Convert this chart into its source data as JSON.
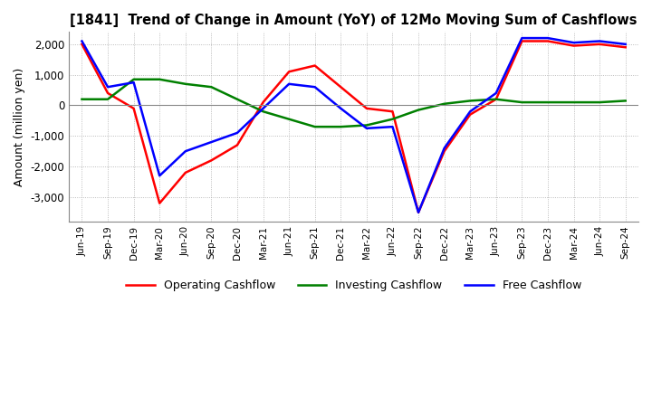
{
  "title": "[1841]  Trend of Change in Amount (YoY) of 12Mo Moving Sum of Cashflows",
  "ylabel": "Amount (million yen)",
  "x_labels": [
    "Jun-19",
    "Sep-19",
    "Dec-19",
    "Mar-20",
    "Jun-20",
    "Sep-20",
    "Dec-20",
    "Mar-21",
    "Jun-21",
    "Sep-21",
    "Dec-21",
    "Mar-22",
    "Jun-22",
    "Sep-22",
    "Dec-22",
    "Mar-23",
    "Jun-23",
    "Sep-23",
    "Dec-23",
    "Mar-24",
    "Jun-24",
    "Sep-24"
  ],
  "operating": [
    2000,
    400,
    -100,
    -3200,
    -2200,
    -1800,
    -1300,
    100,
    1100,
    1300,
    600,
    -100,
    -200,
    -3500,
    -1500,
    -300,
    200,
    2100,
    2100,
    1950,
    2000,
    1900
  ],
  "investing": [
    200,
    200,
    850,
    850,
    700,
    600,
    200,
    -200,
    -450,
    -700,
    -700,
    -650,
    -450,
    -150,
    50,
    150,
    200,
    100,
    100,
    100,
    100,
    150
  ],
  "free": [
    2100,
    600,
    750,
    -2300,
    -1500,
    -1200,
    -900,
    -100,
    700,
    600,
    -100,
    -750,
    -700,
    -3500,
    -1400,
    -200,
    400,
    2200,
    2200,
    2050,
    2100,
    2000
  ],
  "operating_color": "#ff0000",
  "investing_color": "#008000",
  "free_color": "#0000ff",
  "ylim": [
    -3800,
    2400
  ],
  "yticks": [
    -3000,
    -2000,
    -1000,
    0,
    1000,
    2000
  ],
  "grid_color": "#aaaaaa",
  "background_color": "#ffffff",
  "plot_bg_color": "#ffffff"
}
